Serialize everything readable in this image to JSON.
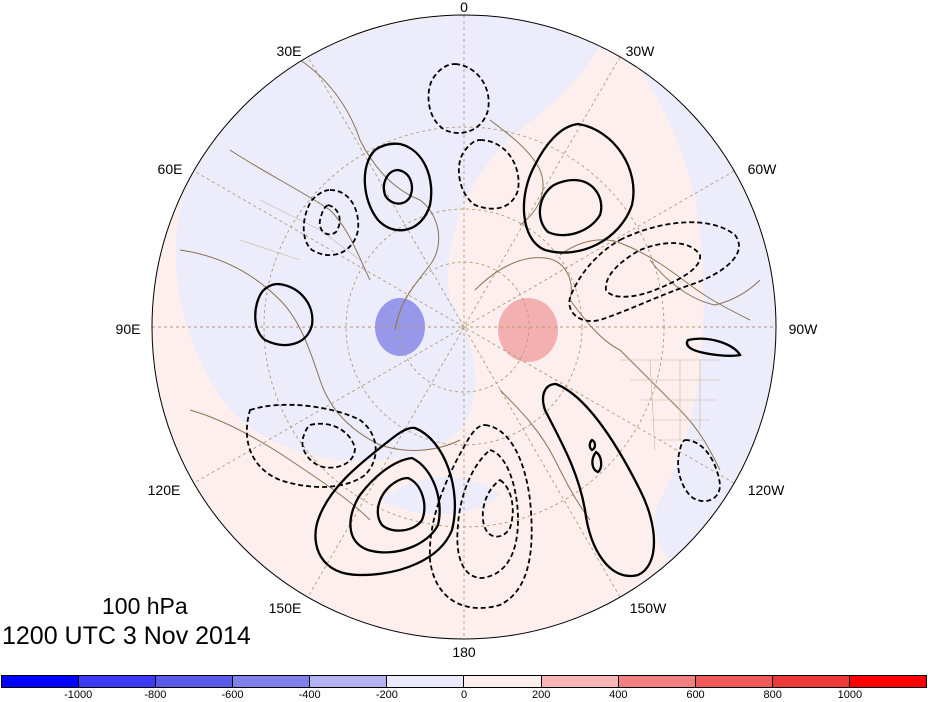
{
  "map": {
    "projection": "north polar stereographic",
    "level_label": "100 hPa",
    "time_label": "1200 UTC 3 Nov 2014",
    "longitude_labels": [
      "0",
      "30W",
      "60W",
      "90W",
      "120W",
      "150W",
      "180",
      "150E",
      "120E",
      "90E",
      "60E",
      "30E"
    ],
    "colorbar": {
      "colors": [
        "#0000ff",
        "#3a3af2",
        "#5a5ae8",
        "#8080ea",
        "#b3b3f2",
        "#eaeafc",
        "#fdeeee",
        "#f7b5b5",
        "#f28080",
        "#ee5a5a",
        "#ec3a3a",
        "#ff0000"
      ],
      "tick_labels": [
        "-1000",
        "-800",
        "-600",
        "-400",
        "-200",
        "0",
        "200",
        "400",
        "600",
        "800",
        "1000"
      ]
    },
    "colors": {
      "negative_fill": "#ececfb",
      "positive_fill": "#fcefee",
      "coastline": "#8a7355",
      "graticule": "#b49b78",
      "contour": "#000000"
    }
  }
}
